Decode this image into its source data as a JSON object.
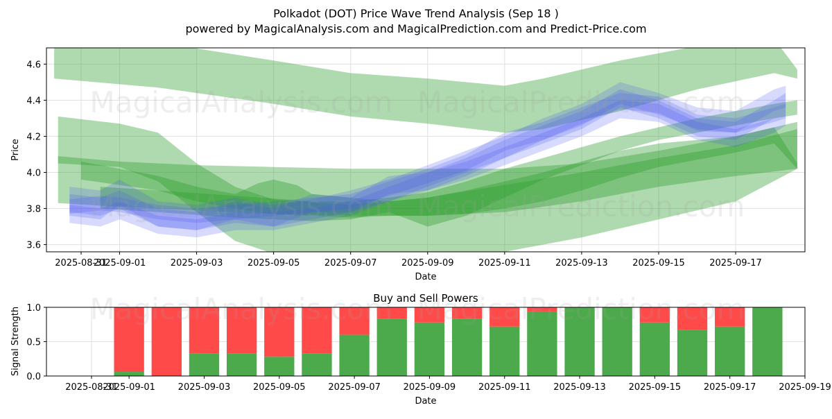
{
  "figure": {
    "title_line1": "Polkadot (DOT) Price Wave Trend Analysis (Sep 18 )",
    "title_line2": "powered by MagicalAnalysis.com and MagicalPrediction.com and Predict-Price.com",
    "watermark_1": "MagicalAnalysis.com",
    "watermark_2": "MagicalPrediction.com"
  },
  "colors": {
    "green": "#2e9e2e",
    "blue": "#4a55f0",
    "buy": "#4caa4c",
    "sell": "#ff4a4a",
    "grid": "#e0e0e0"
  },
  "chart_data": [
    {
      "type": "area",
      "title": "",
      "xlabel": "Date",
      "ylabel": "Price",
      "xlim": [
        -0.9,
        18.8
      ],
      "ylim": [
        3.56,
        4.69
      ],
      "x_ticks": [
        {
          "pos": 0,
          "label": "2025-08-31"
        },
        {
          "pos": 1,
          "label": "2025-09-01"
        },
        {
          "pos": 3,
          "label": "2025-09-03"
        },
        {
          "pos": 5,
          "label": "2025-09-05"
        },
        {
          "pos": 7,
          "label": "2025-09-07"
        },
        {
          "pos": 9,
          "label": "2025-09-09"
        },
        {
          "pos": 11,
          "label": "2025-09-11"
        },
        {
          "pos": 13,
          "label": "2025-09-13"
        },
        {
          "pos": 15,
          "label": "2025-09-15"
        },
        {
          "pos": 17,
          "label": "2025-09-17"
        }
      ],
      "y_ticks": [
        3.6,
        3.8,
        4.0,
        4.2,
        4.4,
        4.6
      ],
      "green_bands": [
        {
          "x": [
            -0.7,
            2,
            5,
            7,
            9,
            11,
            12,
            14,
            16,
            18,
            18.6
          ],
          "upper": [
            4.74,
            4.72,
            4.62,
            4.55,
            4.52,
            4.48,
            4.52,
            4.62,
            4.7,
            4.74,
            4.57
          ],
          "lower": [
            4.52,
            4.47,
            4.38,
            4.31,
            4.27,
            4.22,
            4.24,
            4.34,
            4.46,
            4.55,
            4.52
          ]
        },
        {
          "x": [
            -0.6,
            1,
            2,
            3,
            4,
            5,
            7,
            9,
            11,
            13,
            15,
            17,
            18.6
          ],
          "upper": [
            4.31,
            4.27,
            4.22,
            4.05,
            3.92,
            3.85,
            3.82,
            3.86,
            3.93,
            4.0,
            4.08,
            4.15,
            4.24
          ],
          "lower": [
            4.05,
            4.03,
            3.95,
            3.78,
            3.62,
            3.55,
            3.48,
            3.5,
            3.56,
            3.64,
            3.74,
            3.84,
            4.02
          ]
        },
        {
          "x": [
            -0.6,
            1,
            3,
            5,
            7,
            9,
            11,
            13,
            15,
            17,
            18.6
          ],
          "upper": [
            4.09,
            4.06,
            4.04,
            4.03,
            4.02,
            4.02,
            4.02,
            4.05,
            4.12,
            4.2,
            4.28
          ],
          "lower": [
            3.83,
            3.81,
            3.79,
            3.77,
            3.76,
            3.76,
            3.78,
            3.84,
            3.92,
            3.98,
            4.02
          ]
        },
        {
          "x": [
            0,
            1,
            2,
            3,
            4,
            4.6,
            5,
            5.6,
            6,
            7,
            8,
            9,
            10,
            11,
            12,
            13,
            14,
            15,
            16,
            17,
            18,
            18.6
          ],
          "upper": [
            4.06,
            4.02,
            3.98,
            3.92,
            3.88,
            3.94,
            3.96,
            3.93,
            3.88,
            3.86,
            3.84,
            3.86,
            3.9,
            3.95,
            4.0,
            4.06,
            4.12,
            4.16,
            4.18,
            4.2,
            4.25,
            4.05
          ],
          "lower": [
            3.96,
            3.93,
            3.9,
            3.84,
            3.8,
            3.78,
            3.77,
            3.76,
            3.76,
            3.75,
            3.76,
            3.76,
            3.77,
            3.8,
            3.84,
            3.9,
            3.97,
            4.03,
            4.07,
            4.11,
            4.16,
            4.02
          ]
        },
        {
          "x": [
            0.5,
            2,
            4,
            6,
            7,
            8,
            9,
            10,
            11,
            12,
            13,
            14,
            15,
            16,
            17,
            18,
            18.6
          ],
          "upper": [
            3.92,
            3.9,
            3.87,
            3.84,
            3.84,
            3.86,
            3.89,
            3.95,
            4.02,
            4.08,
            4.14,
            4.2,
            4.25,
            4.3,
            4.34,
            4.38,
            4.4
          ],
          "lower": [
            3.8,
            3.78,
            3.75,
            3.73,
            3.74,
            3.78,
            3.7,
            3.76,
            3.86,
            3.96,
            4.04,
            4.12,
            4.18,
            4.22,
            4.26,
            4.3,
            4.32
          ]
        }
      ],
      "blue_bands": [
        {
          "x": [
            -0.3,
            0.5,
            1,
            2,
            3,
            4,
            5,
            6,
            7,
            8,
            9,
            10,
            11,
            12,
            13,
            14,
            15,
            16,
            17,
            18,
            18.3
          ],
          "upper": [
            3.85,
            3.87,
            3.86,
            3.82,
            3.8,
            3.82,
            3.84,
            3.86,
            3.88,
            3.95,
            4.02,
            4.1,
            4.22,
            4.28,
            4.36,
            4.44,
            4.42,
            4.32,
            4.3,
            4.36,
            4.38
          ],
          "lower": [
            3.77,
            3.79,
            3.78,
            3.74,
            3.72,
            3.74,
            3.76,
            3.78,
            3.8,
            3.87,
            3.94,
            4.01,
            4.12,
            4.18,
            4.27,
            4.35,
            4.33,
            4.23,
            4.22,
            4.28,
            4.3
          ]
        },
        {
          "x": [
            -0.3,
            0.5,
            1,
            2,
            3,
            4,
            5,
            6,
            7,
            8,
            9,
            10,
            11,
            12,
            13,
            14,
            15,
            16,
            17,
            18,
            18.3
          ],
          "upper": [
            3.88,
            3.86,
            3.9,
            3.8,
            3.78,
            3.84,
            3.8,
            3.88,
            3.86,
            3.98,
            4.0,
            4.08,
            4.18,
            4.26,
            4.34,
            4.46,
            4.4,
            4.3,
            4.28,
            4.4,
            4.44
          ],
          "lower": [
            3.78,
            3.76,
            3.8,
            3.7,
            3.68,
            3.74,
            3.7,
            3.78,
            3.78,
            3.88,
            3.9,
            3.98,
            4.08,
            4.16,
            4.24,
            4.36,
            4.3,
            4.2,
            4.18,
            4.3,
            4.34
          ]
        },
        {
          "x": [
            -0.3,
            0.5,
            1,
            2,
            3,
            4,
            5,
            6,
            7,
            8,
            9,
            10,
            11,
            12,
            13,
            14,
            15,
            16,
            17,
            18,
            18.3
          ],
          "upper": [
            3.92,
            3.9,
            3.96,
            3.84,
            3.82,
            3.86,
            3.82,
            3.85,
            3.9,
            3.96,
            4.04,
            4.12,
            4.2,
            4.3,
            4.38,
            4.5,
            4.44,
            4.36,
            4.34,
            4.46,
            4.48
          ],
          "lower": [
            3.76,
            3.74,
            3.82,
            3.7,
            3.68,
            3.72,
            3.7,
            3.74,
            3.78,
            3.84,
            3.92,
            4.0,
            4.08,
            4.18,
            4.26,
            4.38,
            4.32,
            4.24,
            4.22,
            4.34,
            4.36
          ]
        },
        {
          "x": [
            -0.3,
            0.5,
            1,
            2,
            3,
            4,
            5,
            6,
            7,
            8,
            9,
            10,
            11,
            12,
            13,
            14,
            15,
            16,
            17,
            18,
            18.3
          ],
          "upper": [
            3.82,
            3.8,
            3.84,
            3.76,
            3.74,
            3.78,
            3.78,
            3.8,
            3.84,
            3.92,
            4.0,
            4.06,
            4.14,
            4.22,
            4.3,
            4.4,
            4.38,
            4.28,
            4.24,
            4.3,
            4.34
          ],
          "lower": [
            3.72,
            3.7,
            3.74,
            3.66,
            3.64,
            3.68,
            3.68,
            3.72,
            3.76,
            3.84,
            3.9,
            3.96,
            4.04,
            4.12,
            4.2,
            4.3,
            4.28,
            4.18,
            4.14,
            4.22,
            4.26
          ]
        }
      ]
    },
    {
      "type": "bar",
      "title": "Buy and Sell Powers",
      "xlabel": "Date",
      "ylabel": "Signal Strength",
      "xlim": [
        -1.2,
        19.0
      ],
      "ylim": [
        0,
        1
      ],
      "y_ticks": [
        0.0,
        0.5,
        1.0
      ],
      "y_tick_labels": [
        "0.0",
        "0.5",
        "1.0"
      ],
      "x_ticks": [
        {
          "pos": 0,
          "label": "2025-08-31"
        },
        {
          "pos": 1,
          "label": "2025-09-01"
        },
        {
          "pos": 3,
          "label": "2025-09-03"
        },
        {
          "pos": 5,
          "label": "2025-09-05"
        },
        {
          "pos": 7,
          "label": "2025-09-07"
        },
        {
          "pos": 9,
          "label": "2025-09-09"
        },
        {
          "pos": 11,
          "label": "2025-09-11"
        },
        {
          "pos": 13,
          "label": "2025-09-13"
        },
        {
          "pos": 15,
          "label": "2025-09-15"
        },
        {
          "pos": 17,
          "label": "2025-09-17"
        },
        {
          "pos": 19,
          "label": "2025-09-19"
        }
      ],
      "x": [
        1,
        2,
        3,
        4,
        5,
        6,
        7,
        8,
        9,
        10,
        11,
        12,
        13,
        14,
        15,
        16,
        17,
        18
      ],
      "series": [
        {
          "name": "Buy",
          "values": [
            0.06,
            0.0,
            0.33,
            0.33,
            0.28,
            0.33,
            0.6,
            0.83,
            0.78,
            0.83,
            0.72,
            0.94,
            1.0,
            1.0,
            0.78,
            0.67,
            0.72,
            1.0
          ]
        },
        {
          "name": "Sell",
          "values": [
            0.94,
            1.0,
            0.67,
            0.67,
            0.72,
            0.67,
            0.4,
            0.17,
            0.22,
            0.17,
            0.28,
            0.06,
            0.0,
            0.0,
            0.22,
            0.33,
            0.28,
            0.0
          ]
        }
      ]
    }
  ]
}
